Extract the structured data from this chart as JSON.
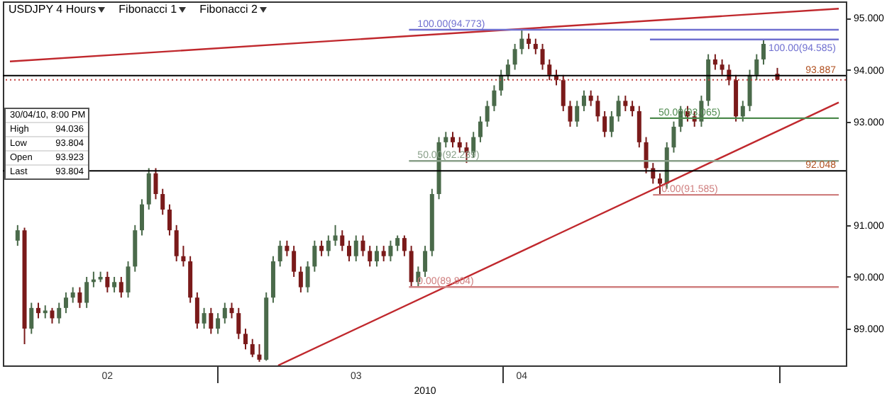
{
  "chart_data": {
    "type": "candlestick",
    "title": "USDJPY 4 Hours",
    "xlabel": "2010",
    "annotations": [
      "Fibonacci 1",
      "Fibonacci 2",
      "30/04/10, 8:00 PM",
      "High",
      "94.036",
      "Low",
      "93.804",
      "Open",
      "93.923",
      "Last",
      "93.804"
    ],
    "x": [
      "2010-02-07T08:00",
      "2010-02-08T02:00",
      "2010-02-08T20:00",
      "2010-02-09T14:00",
      "2010-02-10T08:00",
      "2010-02-11T02:00",
      "2010-02-11T20:00",
      "2010-02-12T14:00",
      "2010-02-13T08:00",
      "2010-02-14T02:00",
      "2010-02-14T20:00",
      "2010-02-15T14:00",
      "2010-02-16T08:00",
      "2010-02-17T02:00",
      "2010-02-17T20:00",
      "2010-02-18T14:00",
      "2010-02-19T08:00",
      "2010-02-20T02:00",
      "2010-02-20T20:00",
      "2010-02-21T14:00",
      "2010-02-22T08:00",
      "2010-02-23T02:00",
      "2010-02-23T20:00",
      "2010-02-24T14:00",
      "2010-02-25T08:00",
      "2010-02-26T02:00",
      "2010-02-26T20:00",
      "2010-02-27T14:00",
      "2010-02-28T08:00",
      "2010-03-01T02:00",
      "2010-03-01T20:00",
      "2010-03-02T14:00",
      "2010-03-03T08:00",
      "2010-03-04T02:00",
      "2010-03-04T20:00",
      "2010-03-05T14:00",
      "2010-03-06T08:00",
      "2010-03-07T02:00",
      "2010-03-07T20:00",
      "2010-03-08T14:00",
      "2010-03-09T08:00",
      "2010-03-10T02:00",
      "2010-03-10T20:00",
      "2010-03-11T14:00",
      "2010-03-12T08:00",
      "2010-03-13T02:00",
      "2010-03-13T20:00",
      "2010-03-14T14:00",
      "2010-03-15T08:00",
      "2010-03-16T02:00",
      "2010-03-16T20:00",
      "2010-03-17T14:00",
      "2010-03-18T08:00",
      "2010-03-19T02:00",
      "2010-03-19T20:00",
      "2010-03-20T14:00",
      "2010-03-21T08:00",
      "2010-03-22T02:00",
      "2010-03-22T20:00",
      "2010-03-23T14:00",
      "2010-03-24T08:00",
      "2010-03-25T02:00",
      "2010-03-25T20:00",
      "2010-03-26T14:00",
      "2010-03-27T08:00",
      "2010-03-28T02:00",
      "2010-03-28T20:00",
      "2010-03-29T14:00",
      "2010-03-30T08:00",
      "2010-03-31T02:00",
      "2010-03-31T20:00",
      "2010-04-01T14:00",
      "2010-04-02T08:00",
      "2010-04-03T02:00",
      "2010-04-03T20:00",
      "2010-04-04T14:00",
      "2010-04-05T08:00",
      "2010-04-06T02:00",
      "2010-04-06T20:00",
      "2010-04-07T14:00",
      "2010-04-08T08:00",
      "2010-04-09T02:00",
      "2010-04-09T20:00",
      "2010-04-10T14:00",
      "2010-04-11T08:00",
      "2010-04-12T02:00",
      "2010-04-12T20:00",
      "2010-04-13T14:00",
      "2010-04-14T08:00",
      "2010-04-15T02:00",
      "2010-04-15T20:00",
      "2010-04-16T14:00",
      "2010-04-17T08:00",
      "2010-04-18T02:00",
      "2010-04-18T20:00",
      "2010-04-19T14:00",
      "2010-04-20T08:00",
      "2010-04-21T02:00",
      "2010-04-21T20:00",
      "2010-04-22T14:00",
      "2010-04-23T08:00",
      "2010-04-24T02:00",
      "2010-04-24T20:00",
      "2010-04-25T14:00",
      "2010-04-26T08:00",
      "2010-04-27T02:00",
      "2010-04-27T20:00",
      "2010-04-28T14:00",
      "2010-04-29T08:00",
      "2010-04-30T20:00"
    ],
    "ohlc": [
      [
        90.7,
        91.0,
        90.6,
        90.9
      ],
      [
        90.9,
        90.95,
        88.7,
        89.0
      ],
      [
        89.0,
        89.5,
        88.9,
        89.4
      ],
      [
        89.4,
        89.5,
        89.2,
        89.3
      ],
      [
        89.3,
        89.45,
        89.2,
        89.35
      ],
      [
        89.35,
        89.4,
        89.1,
        89.2
      ],
      [
        89.2,
        89.5,
        89.1,
        89.4
      ],
      [
        89.4,
        89.7,
        89.3,
        89.6
      ],
      [
        89.6,
        89.8,
        89.5,
        89.7
      ],
      [
        89.7,
        89.8,
        89.4,
        89.5
      ],
      [
        89.5,
        90.0,
        89.4,
        89.9
      ],
      [
        89.9,
        90.1,
        89.8,
        89.95
      ],
      [
        89.95,
        90.1,
        89.9,
        90.0
      ],
      [
        90.0,
        90.1,
        89.7,
        89.8
      ],
      [
        89.8,
        90.0,
        89.7,
        89.9
      ],
      [
        89.9,
        90.0,
        89.6,
        89.7
      ],
      [
        89.7,
        90.3,
        89.6,
        90.2
      ],
      [
        90.2,
        91.0,
        90.1,
        90.9
      ],
      [
        90.9,
        91.5,
        90.8,
        91.4
      ],
      [
        91.4,
        92.1,
        91.3,
        92.0
      ],
      [
        92.0,
        92.1,
        91.5,
        91.6
      ],
      [
        91.6,
        91.7,
        91.2,
        91.3
      ],
      [
        91.3,
        91.4,
        90.8,
        90.9
      ],
      [
        90.9,
        91.0,
        90.3,
        90.4
      ],
      [
        90.4,
        90.6,
        90.2,
        90.3
      ],
      [
        90.3,
        90.4,
        89.5,
        89.6
      ],
      [
        89.6,
        89.7,
        89.0,
        89.1
      ],
      [
        89.1,
        89.4,
        89.0,
        89.3
      ],
      [
        89.3,
        89.4,
        88.9,
        89.0
      ],
      [
        89.0,
        89.3,
        88.9,
        89.2
      ],
      [
        89.2,
        89.5,
        89.1,
        89.4
      ],
      [
        89.4,
        89.5,
        89.2,
        89.3
      ],
      [
        89.3,
        89.4,
        88.8,
        88.9
      ],
      [
        88.9,
        89.0,
        88.6,
        88.7
      ],
      [
        88.7,
        88.8,
        88.45,
        88.5
      ],
      [
        88.5,
        88.7,
        88.36,
        88.4
      ],
      [
        88.4,
        89.7,
        88.38,
        89.6
      ],
      [
        89.6,
        90.4,
        89.5,
        90.3
      ],
      [
        90.3,
        90.7,
        90.2,
        90.6
      ],
      [
        90.6,
        90.7,
        90.4,
        90.5
      ],
      [
        90.5,
        90.6,
        90.0,
        90.1
      ],
      [
        90.1,
        90.2,
        89.7,
        89.8
      ],
      [
        89.8,
        90.3,
        89.7,
        90.2
      ],
      [
        90.2,
        90.7,
        90.1,
        90.6
      ],
      [
        90.6,
        90.7,
        90.4,
        90.5
      ],
      [
        90.5,
        90.8,
        90.4,
        90.7
      ],
      [
        90.7,
        91.0,
        90.6,
        90.8
      ],
      [
        90.8,
        90.9,
        90.5,
        90.6
      ],
      [
        90.6,
        90.7,
        90.3,
        90.4
      ],
      [
        90.4,
        90.8,
        90.3,
        90.7
      ],
      [
        90.7,
        90.8,
        90.4,
        90.5
      ],
      [
        90.5,
        90.6,
        90.2,
        90.3
      ],
      [
        90.3,
        90.6,
        90.2,
        90.5
      ],
      [
        90.5,
        90.6,
        90.3,
        90.4
      ],
      [
        90.4,
        90.7,
        90.3,
        90.6
      ],
      [
        90.6,
        90.8,
        90.5,
        90.75
      ],
      [
        90.75,
        90.8,
        90.4,
        90.5
      ],
      [
        90.5,
        90.6,
        89.8,
        89.9
      ],
      [
        89.9,
        90.2,
        89.8,
        90.1
      ],
      [
        90.1,
        90.6,
        90.0,
        90.5
      ],
      [
        90.5,
        91.7,
        90.4,
        91.6
      ],
      [
        91.6,
        92.7,
        91.5,
        92.6
      ],
      [
        92.6,
        92.8,
        92.5,
        92.7
      ],
      [
        92.7,
        92.8,
        92.5,
        92.6
      ],
      [
        92.6,
        92.7,
        92.4,
        92.5
      ],
      [
        92.5,
        92.6,
        92.2,
        92.4
      ],
      [
        92.4,
        92.8,
        92.3,
        92.7
      ],
      [
        92.7,
        93.1,
        92.6,
        93.0
      ],
      [
        93.0,
        93.4,
        92.9,
        93.3
      ],
      [
        93.3,
        93.7,
        93.2,
        93.6
      ],
      [
        93.6,
        94.0,
        93.5,
        93.9
      ],
      [
        93.9,
        94.2,
        93.8,
        94.1
      ],
      [
        94.1,
        94.5,
        94.0,
        94.4
      ],
      [
        94.4,
        94.773,
        94.3,
        94.6
      ],
      [
        94.6,
        94.7,
        94.4,
        94.5
      ],
      [
        94.5,
        94.6,
        94.3,
        94.4
      ],
      [
        94.4,
        94.5,
        94.0,
        94.1
      ],
      [
        94.1,
        94.2,
        93.8,
        93.9
      ],
      [
        93.9,
        94.0,
        93.7,
        93.8
      ],
      [
        93.8,
        93.9,
        93.2,
        93.3
      ],
      [
        93.3,
        93.4,
        92.9,
        93.0
      ],
      [
        93.0,
        93.4,
        92.9,
        93.3
      ],
      [
        93.3,
        93.6,
        93.2,
        93.5
      ],
      [
        93.5,
        93.6,
        93.3,
        93.4
      ],
      [
        93.4,
        93.5,
        93.0,
        93.1
      ],
      [
        93.1,
        93.2,
        92.7,
        92.8
      ],
      [
        92.8,
        93.2,
        92.7,
        93.1
      ],
      [
        93.1,
        93.5,
        93.0,
        93.4
      ],
      [
        93.4,
        93.5,
        93.2,
        93.3
      ],
      [
        93.3,
        93.4,
        93.1,
        93.2
      ],
      [
        93.2,
        93.3,
        92.5,
        92.6
      ],
      [
        92.6,
        92.7,
        92.0,
        92.1
      ],
      [
        92.1,
        92.2,
        91.8,
        91.9
      ],
      [
        91.9,
        92.0,
        91.585,
        91.8
      ],
      [
        91.8,
        92.6,
        91.7,
        92.5
      ],
      [
        92.5,
        93.0,
        92.4,
        92.9
      ],
      [
        92.9,
        93.3,
        92.8,
        93.2
      ],
      [
        93.2,
        93.3,
        93.0,
        93.1
      ],
      [
        93.1,
        93.2,
        92.9,
        93.0
      ],
      [
        93.0,
        93.5,
        92.9,
        93.4
      ],
      [
        93.4,
        94.3,
        93.3,
        94.2
      ],
      [
        94.2,
        94.3,
        94.0,
        94.1
      ],
      [
        94.1,
        94.2,
        93.9,
        94.0
      ],
      [
        94.0,
        94.1,
        93.7,
        93.8
      ],
      [
        93.8,
        93.9,
        93.0,
        93.1
      ],
      [
        93.1,
        93.4,
        93.0,
        93.3
      ],
      [
        93.3,
        94.0,
        93.2,
        93.9
      ],
      [
        93.9,
        94.3,
        93.8,
        94.2
      ],
      [
        94.2,
        94.585,
        94.1,
        94.5
      ],
      [
        93.923,
        94.036,
        93.804,
        93.804
      ]
    ],
    "series": [
      {
        "type": "line",
        "color": "#c0282d",
        "x": [
          "2010-02-06T12:00",
          "2010-05-07T12:00"
        ],
        "values": [
          94.16,
          95.18
        ]
      },
      {
        "type": "line",
        "color": "#c0282d",
        "x": [
          "2010-03-07T15:00",
          "2010-05-07T12:00"
        ],
        "values": [
          88.29,
          93.37
        ]
      },
      {
        "type": "line",
        "name": "100.00(94.773)",
        "color": "#7070d0",
        "x": [
          "2010-03-21T20:00",
          "2010-05-07T12:00"
        ],
        "values": [
          94.773,
          94.773
        ]
      },
      {
        "type": "line",
        "name": "100.00(94.585)",
        "color": "#7070d0",
        "x": [
          "2010-04-17T00:00",
          "2010-05-07T12:00"
        ],
        "values": [
          94.585,
          94.585
        ]
      },
      {
        "type": "line",
        "name": "50.00(93.065)",
        "color": "#4e8a4e",
        "x": [
          "2010-04-17T00:00",
          "2010-05-07T12:00"
        ],
        "values": [
          93.065,
          93.065
        ]
      },
      {
        "type": "line",
        "name": "50.00(92.239)",
        "color": "#8aa08a",
        "x": [
          "2010-03-21T20:00",
          "2010-05-07T12:00"
        ],
        "values": [
          92.239,
          92.239
        ]
      },
      {
        "type": "line",
        "name": "0.00(91.585)",
        "color": "#d08080",
        "x": [
          "2010-04-17T08:00",
          "2010-05-07T12:00"
        ],
        "values": [
          91.585,
          91.585
        ]
      },
      {
        "type": "line",
        "name": "0.00(89.804)",
        "color": "#d08080",
        "x": [
          "2010-03-21T20:00",
          "2010-05-07T12:00"
        ],
        "values": [
          89.804,
          89.804
        ]
      }
    ],
    "ref_lines": [
      {
        "axis": "y",
        "value": 93.887,
        "label": "93.887",
        "color": "#000000"
      },
      {
        "axis": "y",
        "value": 92.048,
        "label": "92.048",
        "color": "#000000"
      },
      {
        "axis": "y",
        "value": 93.804,
        "color": "#c04040",
        "line_style": "dotted"
      }
    ],
    "xlim": [
      "2010-02-06T12:00",
      "2010-05-07T12:00"
    ],
    "xticks": [
      {
        "value": "2010-02-17",
        "label": "02"
      },
      {
        "value": "2010-03-01",
        "label": null
      },
      {
        "value": "2010-03-16",
        "label": "03"
      },
      {
        "value": "2010-04-01",
        "label": null
      },
      {
        "value": "2010-04-03",
        "label": "04"
      },
      {
        "value": "2010-05-01",
        "label": null
      }
    ],
    "ylim": [
      88.29,
      95.32
    ],
    "yticks": [
      {
        "value": 89,
        "label": "89.000"
      },
      {
        "value": 90,
        "label": "90.000"
      },
      {
        "value": 91,
        "label": "91.000"
      },
      {
        "value": 93,
        "label": "93.000"
      },
      {
        "value": 94,
        "label": "94.000"
      },
      {
        "value": 95,
        "label": "95.000"
      }
    ]
  }
}
